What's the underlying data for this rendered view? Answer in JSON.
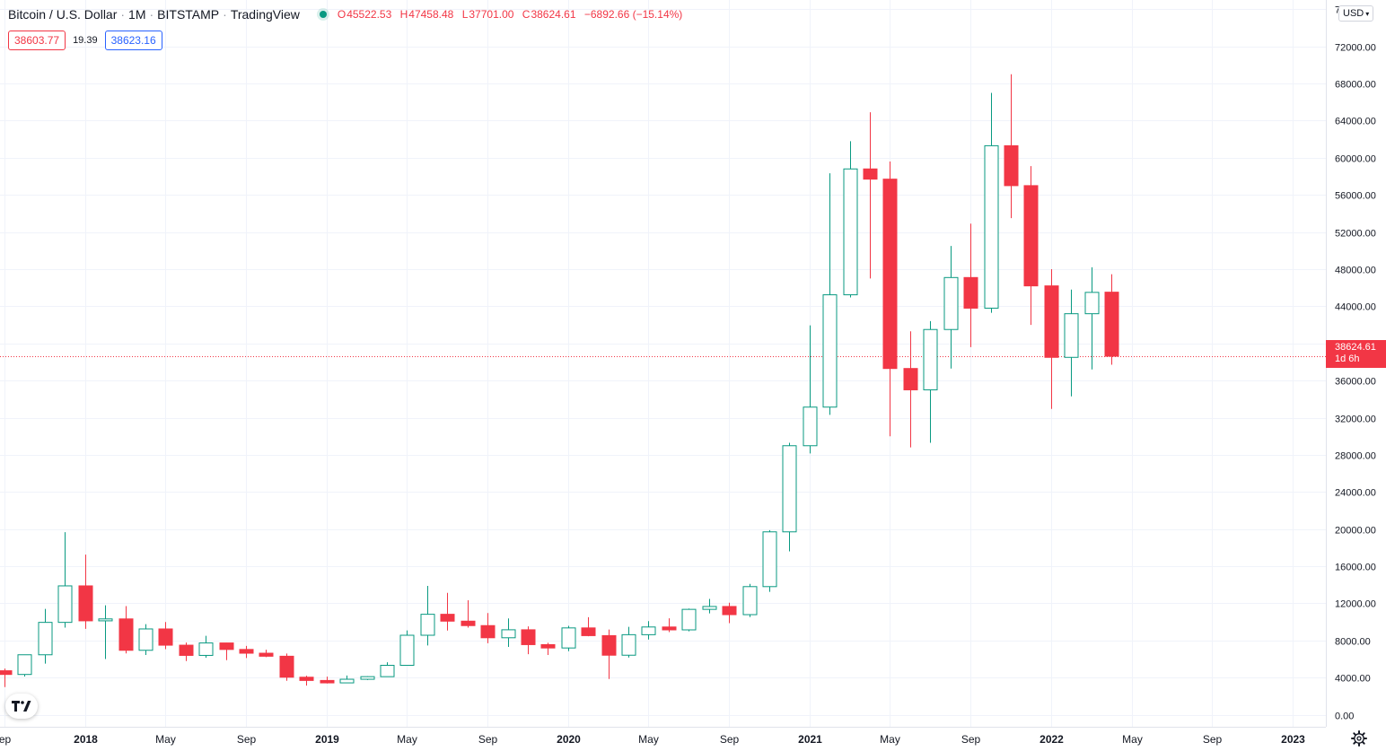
{
  "header": {
    "title": "Bitcoin / U.S. Dollar",
    "interval": "1M",
    "exchange": "BITSTAMP",
    "platform": "TradingView",
    "ohlc": {
      "o_key": "O",
      "o": "45522.53",
      "h_key": "H",
      "h": "47458.48",
      "l_key": "L",
      "l": "37701.00",
      "c_key": "C",
      "c": "38624.61",
      "change": "−6892.66 (−15.14%)"
    }
  },
  "prices": {
    "sell": "38603.77",
    "spread": "19.39",
    "buy": "38623.16"
  },
  "currency_button": {
    "label": "USD",
    "caret": "▾"
  },
  "current_price_label": {
    "price": "38624.61",
    "countdown": "1d 6h"
  },
  "logo": {
    "text": "17"
  },
  "colors": {
    "up": "#089981",
    "down": "#f23645",
    "grid": "#f0f3fa",
    "axis_text": "#131722"
  },
  "chart_data": {
    "type": "candlestick",
    "interval": "1M",
    "ylim": [
      -1300,
      77000
    ],
    "y_ticks": [
      {
        "v": 0,
        "label": "0.00"
      },
      {
        "v": 4000,
        "label": "4000.00"
      },
      {
        "v": 8000,
        "label": "8000.00"
      },
      {
        "v": 12000,
        "label": "12000.00"
      },
      {
        "v": 16000,
        "label": "16000.00"
      },
      {
        "v": 20000,
        "label": "20000.00"
      },
      {
        "v": 24000,
        "label": "24000.00"
      },
      {
        "v": 28000,
        "label": "28000.00"
      },
      {
        "v": 32000,
        "label": "32000.00"
      },
      {
        "v": 36000,
        "label": "36000.00"
      },
      {
        "v": 40000,
        "label": "40000.00"
      },
      {
        "v": 44000,
        "label": "44000.00"
      },
      {
        "v": 48000,
        "label": "48000.00"
      },
      {
        "v": 52000,
        "label": "52000.00"
      },
      {
        "v": 56000,
        "label": "56000.00"
      },
      {
        "v": 60000,
        "label": "60000.00"
      },
      {
        "v": 64000,
        "label": "64000.00"
      },
      {
        "v": 68000,
        "label": "68000.00"
      },
      {
        "v": 72000,
        "label": "72000.00"
      },
      {
        "v": 76000,
        "label": "7 0"
      }
    ],
    "x_ticks": [
      {
        "m": "2017-09",
        "label": "ep"
      },
      {
        "m": "2018-01",
        "label": "2018"
      },
      {
        "m": "2018-05",
        "label": "May"
      },
      {
        "m": "2018-09",
        "label": "Sep"
      },
      {
        "m": "2019-01",
        "label": "2019"
      },
      {
        "m": "2019-05",
        "label": "May"
      },
      {
        "m": "2019-09",
        "label": "Sep"
      },
      {
        "m": "2020-01",
        "label": "2020"
      },
      {
        "m": "2020-05",
        "label": "May"
      },
      {
        "m": "2020-09",
        "label": "Sep"
      },
      {
        "m": "2021-01",
        "label": "2021"
      },
      {
        "m": "2021-05",
        "label": "May"
      },
      {
        "m": "2021-09",
        "label": "Sep"
      },
      {
        "m": "2022-01",
        "label": "2022"
      },
      {
        "m": "2022-05",
        "label": "May"
      },
      {
        "m": "2022-09",
        "label": "Sep"
      },
      {
        "m": "2023-01",
        "label": "2023"
      }
    ],
    "current_price": 38624.61,
    "candles": [
      {
        "date": "2017-09",
        "o": 4735,
        "h": 4975,
        "l": 2980,
        "c": 4337
      },
      {
        "date": "2017-10",
        "o": 4337,
        "h": 6470,
        "l": 4110,
        "c": 6457
      },
      {
        "date": "2017-11",
        "o": 6457,
        "h": 11400,
        "l": 5508,
        "c": 9947
      },
      {
        "date": "2017-12",
        "o": 9947,
        "h": 19666,
        "l": 9380,
        "c": 13880
      },
      {
        "date": "2018-01",
        "o": 13880,
        "h": 17252,
        "l": 9250,
        "c": 10114
      },
      {
        "date": "2018-02",
        "o": 10114,
        "h": 11790,
        "l": 6000,
        "c": 10320
      },
      {
        "date": "2018-03",
        "o": 10320,
        "h": 11700,
        "l": 6600,
        "c": 6940
      },
      {
        "date": "2018-04",
        "o": 6940,
        "h": 9760,
        "l": 6430,
        "c": 9240
      },
      {
        "date": "2018-05",
        "o": 9240,
        "h": 9990,
        "l": 7060,
        "c": 7490
      },
      {
        "date": "2018-06",
        "o": 7490,
        "h": 7770,
        "l": 5780,
        "c": 6390
      },
      {
        "date": "2018-07",
        "o": 6390,
        "h": 8500,
        "l": 6130,
        "c": 7730
      },
      {
        "date": "2018-08",
        "o": 7730,
        "h": 7750,
        "l": 5880,
        "c": 7030
      },
      {
        "date": "2018-09",
        "o": 7030,
        "h": 7410,
        "l": 6110,
        "c": 6625
      },
      {
        "date": "2018-10",
        "o": 6625,
        "h": 7000,
        "l": 6200,
        "c": 6300
      },
      {
        "date": "2018-11",
        "o": 6300,
        "h": 6590,
        "l": 3650,
        "c": 4040
      },
      {
        "date": "2018-12",
        "o": 4040,
        "h": 4200,
        "l": 3130,
        "c": 3690
      },
      {
        "date": "2019-01",
        "o": 3690,
        "h": 4100,
        "l": 3360,
        "c": 3430
      },
      {
        "date": "2019-02",
        "o": 3430,
        "h": 4220,
        "l": 3390,
        "c": 3820
      },
      {
        "date": "2019-03",
        "o": 3820,
        "h": 4150,
        "l": 3740,
        "c": 4100
      },
      {
        "date": "2019-04",
        "o": 4100,
        "h": 5650,
        "l": 4080,
        "c": 5320
      },
      {
        "date": "2019-05",
        "o": 5320,
        "h": 9080,
        "l": 5330,
        "c": 8560
      },
      {
        "date": "2019-06",
        "o": 8560,
        "h": 13880,
        "l": 7460,
        "c": 10820
      },
      {
        "date": "2019-07",
        "o": 10820,
        "h": 13130,
        "l": 9070,
        "c": 10080
      },
      {
        "date": "2019-08",
        "o": 10080,
        "h": 12330,
        "l": 9380,
        "c": 9600
      },
      {
        "date": "2019-09",
        "o": 9600,
        "h": 10950,
        "l": 7700,
        "c": 8290
      },
      {
        "date": "2019-10",
        "o": 8290,
        "h": 10370,
        "l": 7300,
        "c": 9150
      },
      {
        "date": "2019-11",
        "o": 9150,
        "h": 9510,
        "l": 6520,
        "c": 7550
      },
      {
        "date": "2019-12",
        "o": 7550,
        "h": 7750,
        "l": 6430,
        "c": 7190
      },
      {
        "date": "2020-01",
        "o": 7190,
        "h": 9580,
        "l": 6850,
        "c": 9350
      },
      {
        "date": "2020-02",
        "o": 9350,
        "h": 10500,
        "l": 8450,
        "c": 8520
      },
      {
        "date": "2020-03",
        "o": 8520,
        "h": 9180,
        "l": 3850,
        "c": 6410
      },
      {
        "date": "2020-04",
        "o": 6410,
        "h": 9470,
        "l": 6150,
        "c": 8620
      },
      {
        "date": "2020-05",
        "o": 8620,
        "h": 10080,
        "l": 8100,
        "c": 9450
      },
      {
        "date": "2020-06",
        "o": 9450,
        "h": 10380,
        "l": 8900,
        "c": 9140
      },
      {
        "date": "2020-07",
        "o": 9140,
        "h": 11430,
        "l": 8980,
        "c": 11350
      },
      {
        "date": "2020-08",
        "o": 11350,
        "h": 12470,
        "l": 10920,
        "c": 11660
      },
      {
        "date": "2020-09",
        "o": 11660,
        "h": 12060,
        "l": 9860,
        "c": 10780
      },
      {
        "date": "2020-10",
        "o": 10780,
        "h": 14100,
        "l": 10520,
        "c": 13800
      },
      {
        "date": "2020-11",
        "o": 13800,
        "h": 19880,
        "l": 13240,
        "c": 19700
      },
      {
        "date": "2020-12",
        "o": 19700,
        "h": 29300,
        "l": 17600,
        "c": 28980
      },
      {
        "date": "2021-01",
        "o": 28980,
        "h": 41950,
        "l": 28150,
        "c": 33140
      },
      {
        "date": "2021-02",
        "o": 33140,
        "h": 58330,
        "l": 32300,
        "c": 45240
      },
      {
        "date": "2021-03",
        "o": 45240,
        "h": 61790,
        "l": 44960,
        "c": 58800
      },
      {
        "date": "2021-04",
        "o": 58800,
        "h": 64900,
        "l": 47000,
        "c": 57700
      },
      {
        "date": "2021-05",
        "o": 57700,
        "h": 59600,
        "l": 30000,
        "c": 37300
      },
      {
        "date": "2021-06",
        "o": 37300,
        "h": 41300,
        "l": 28800,
        "c": 35000
      },
      {
        "date": "2021-07",
        "o": 35000,
        "h": 42400,
        "l": 29300,
        "c": 41500
      },
      {
        "date": "2021-08",
        "o": 41500,
        "h": 50500,
        "l": 37300,
        "c": 47100
      },
      {
        "date": "2021-09",
        "o": 47100,
        "h": 52900,
        "l": 39600,
        "c": 43800
      },
      {
        "date": "2021-10",
        "o": 43800,
        "h": 67000,
        "l": 43300,
        "c": 61300
      },
      {
        "date": "2021-11",
        "o": 61300,
        "h": 69000,
        "l": 53500,
        "c": 57000
      },
      {
        "date": "2021-12",
        "o": 57000,
        "h": 59100,
        "l": 42000,
        "c": 46200
      },
      {
        "date": "2022-01",
        "o": 46200,
        "h": 48000,
        "l": 32950,
        "c": 38500
      },
      {
        "date": "2022-02",
        "o": 38500,
        "h": 45800,
        "l": 34300,
        "c": 43200
      },
      {
        "date": "2022-03",
        "o": 43200,
        "h": 48200,
        "l": 37200,
        "c": 45500
      },
      {
        "date": "2022-04",
        "o": 45522.53,
        "h": 47458.48,
        "l": 37701.0,
        "c": 38624.61
      }
    ]
  }
}
